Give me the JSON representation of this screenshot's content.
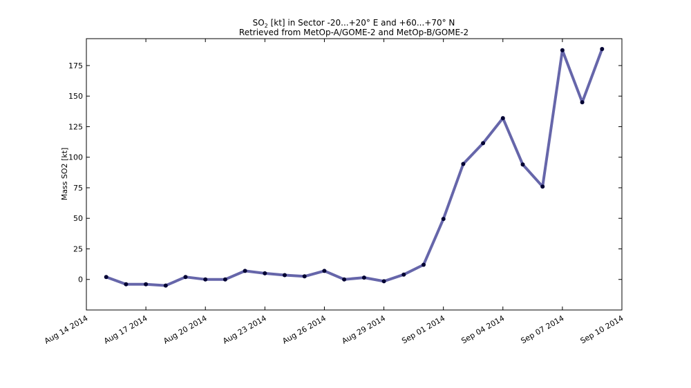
{
  "chart_data": {
    "type": "line",
    "title_line1": {
      "prefix": "SO",
      "subscript": "2",
      "rest": " [kt] in Sector -20...+20° E and +60...+70° N"
    },
    "title_line2": "Retrieved from MetOp-A/GOME-2 and MetOp-B/GOME-2",
    "ylabel": "Mass SO2 [kt]",
    "xlabel": "",
    "ylim": [
      -25,
      197
    ],
    "xlim": [
      "2014-08-14",
      "2014-09-10"
    ],
    "y_ticks": [
      0,
      25,
      50,
      75,
      100,
      125,
      150,
      175
    ],
    "x_ticks": [
      {
        "date": "2014-08-14",
        "label": "Aug 14 2014"
      },
      {
        "date": "2014-08-17",
        "label": "Aug 17 2014"
      },
      {
        "date": "2014-08-20",
        "label": "Aug 20 2014"
      },
      {
        "date": "2014-08-23",
        "label": "Aug 23 2014"
      },
      {
        "date": "2014-08-26",
        "label": "Aug 26 2014"
      },
      {
        "date": "2014-08-29",
        "label": "Aug 29 2014"
      },
      {
        "date": "2014-09-01",
        "label": "Sep 01 2014"
      },
      {
        "date": "2014-09-04",
        "label": "Sep 04 2014"
      },
      {
        "date": "2014-09-07",
        "label": "Sep 07 2014"
      },
      {
        "date": "2014-09-10",
        "label": "Sep 10 2014"
      }
    ],
    "grid": false,
    "legend": "none",
    "line_color": "#6666aa",
    "marker_color": "#000033",
    "series": [
      {
        "x": [
          "2014-08-15",
          "2014-08-16",
          "2014-08-17",
          "2014-08-18",
          "2014-08-19",
          "2014-08-20",
          "2014-08-21",
          "2014-08-22",
          "2014-08-23",
          "2014-08-24",
          "2014-08-25",
          "2014-08-26",
          "2014-08-27",
          "2014-08-28",
          "2014-08-29",
          "2014-08-30",
          "2014-08-31",
          "2014-09-01",
          "2014-09-02",
          "2014-09-03",
          "2014-09-04",
          "2014-09-05",
          "2014-09-06",
          "2014-09-07",
          "2014-09-08",
          "2014-09-09"
        ],
        "values": [
          2,
          -4,
          -4,
          -5,
          2,
          0,
          0,
          7,
          5,
          3.5,
          2.5,
          7,
          0,
          1.5,
          -1.5,
          4,
          12,
          49.5,
          94.5,
          111.5,
          132,
          94,
          76,
          187.5,
          145,
          188.5
        ]
      }
    ]
  }
}
